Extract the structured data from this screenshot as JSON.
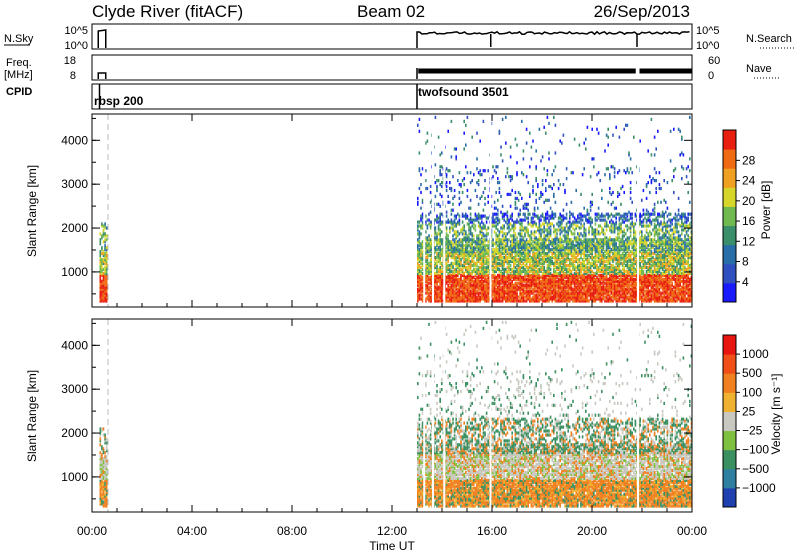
{
  "header": {
    "station": "Clyde River (fitACF)",
    "beam": "Beam 02",
    "date": "26/Sep/2013"
  },
  "aux_panels": {
    "nsky_label": "N.Sky",
    "nsky_ticks": [
      "10^5",
      "10^0"
    ],
    "nsearch_label": "N.Search",
    "nsearch_ticks": [
      "10^5",
      "10^0"
    ],
    "freq_label": "Freq.",
    "freq_unit": "[MHz]",
    "freq_ticks": [
      "18",
      "8"
    ],
    "nave_label": "Nave",
    "nave_ticks": [
      "60",
      "0"
    ],
    "cpid_label": "CPID",
    "cpid_modes": [
      {
        "name": "rbsp 200",
        "start_hr": 0.3
      },
      {
        "name": "twofsound 3501",
        "start_hr": 13.0
      }
    ]
  },
  "chart_data": [
    {
      "type": "heatmap",
      "panel": "power",
      "xlabel": "",
      "ylabel": "Slant Range [km]",
      "x_unit": "hours UT",
      "xlim": [
        0,
        24
      ],
      "ylim": [
        200,
        4600
      ],
      "yticks": [
        "1000",
        "2000",
        "3000",
        "4000"
      ],
      "colorbar_label": "Power [dB]",
      "colorbar_ticks": [
        "4",
        "8",
        "12",
        "16",
        "20",
        "24",
        "28"
      ],
      "colorbar_colors": [
        "#1a1aff",
        "#3050c0",
        "#2a6ea8",
        "#3a8f6a",
        "#70b850",
        "#d6d62a",
        "#f0a020",
        "#f06a14",
        "#e81e10"
      ],
      "data_intervals": [
        [
          0.3,
          0.6
        ],
        [
          13.0,
          24.0
        ]
      ]
    },
    {
      "type": "heatmap",
      "panel": "velocity",
      "xlabel": "Time UT",
      "ylabel": "Slant Range [km]",
      "x_unit": "hours UT",
      "xlim": [
        0,
        24
      ],
      "ylim": [
        200,
        4600
      ],
      "yticks": [
        "1000",
        "2000",
        "3000",
        "4000"
      ],
      "xticks": [
        "00:00",
        "04:00",
        "08:00",
        "12:00",
        "16:00",
        "20:00",
        "00:00"
      ],
      "colorbar_label": "Velocity [m s⁻¹]",
      "colorbar_ticks": [
        "1000",
        "500",
        "100",
        "25",
        "−25",
        "−100",
        "−500",
        "−1000"
      ],
      "colorbar_colors": [
        "#2040b0",
        "#2f7fa0",
        "#3a9060",
        "#80c040",
        "#c8c8c0",
        "#f0b030",
        "#f08020",
        "#f05018",
        "#e81410"
      ],
      "data_intervals": [
        [
          0.3,
          0.6
        ],
        [
          13.0,
          24.0
        ]
      ]
    }
  ]
}
